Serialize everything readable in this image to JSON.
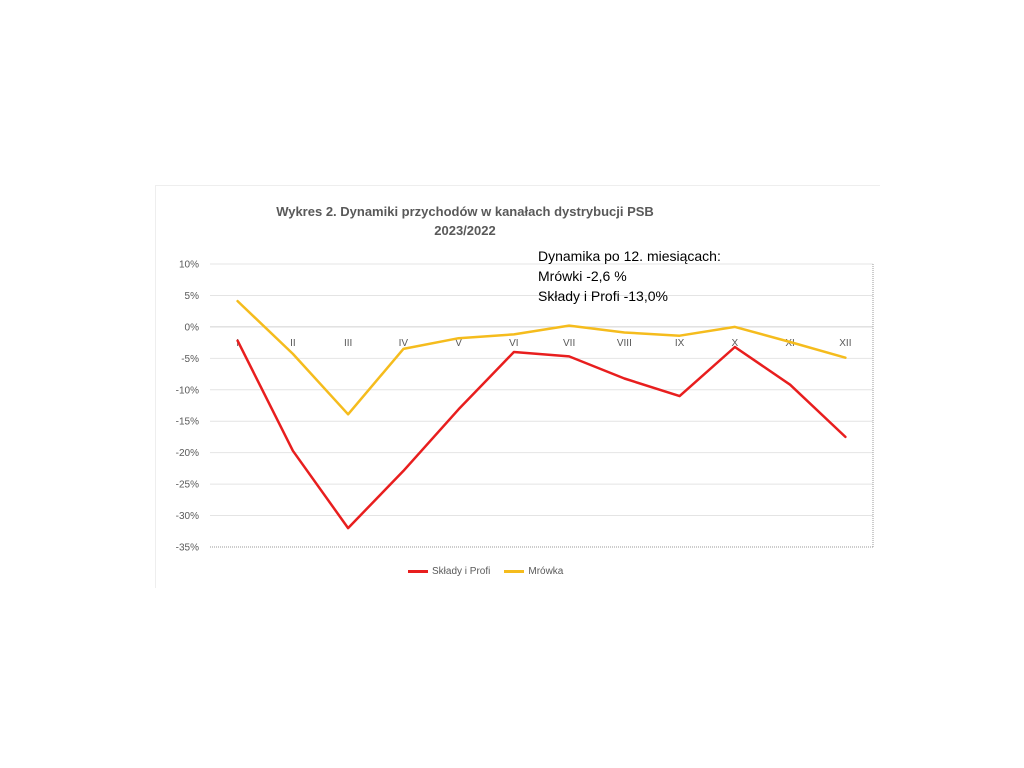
{
  "chart_data": {
    "type": "line",
    "title_line1": "Wykres 2. Dynamiki przychodów w kanałach dystrybucji PSB",
    "title_line2": "2023/2022",
    "categories": [
      "I",
      "II",
      "III",
      "IV",
      "V",
      "VI",
      "VII",
      "VIII",
      "IX",
      "X",
      "XI",
      "XII"
    ],
    "series": [
      {
        "name": "Składy i Profi",
        "color": "#e81e1e",
        "values": [
          -2.2,
          -19.7,
          -32.0,
          -22.9,
          -13.1,
          -4.0,
          -4.7,
          -8.2,
          -11.0,
          -3.2,
          -9.2,
          -17.5
        ]
      },
      {
        "name": "Mrówka",
        "color": "#f5bc1d",
        "values": [
          4.1,
          -4.3,
          -13.9,
          -3.5,
          -1.8,
          -1.2,
          0.2,
          -0.9,
          -1.4,
          0.0,
          -2.4,
          -4.9
        ]
      }
    ],
    "y_ticks": [
      "10%",
      "5%",
      "0%",
      "-5%",
      "-10%",
      "-15%",
      "-20%",
      "-25%",
      "-30%",
      "-35%"
    ],
    "ylim": [
      -35,
      10
    ],
    "y_step": 5,
    "grid": true,
    "legend_position": "bottom",
    "annotation": [
      "Dynamika po 12. miesiącach:",
      "Mrówki  -2,6 %",
      "Składy i Profi -13,0%"
    ]
  }
}
